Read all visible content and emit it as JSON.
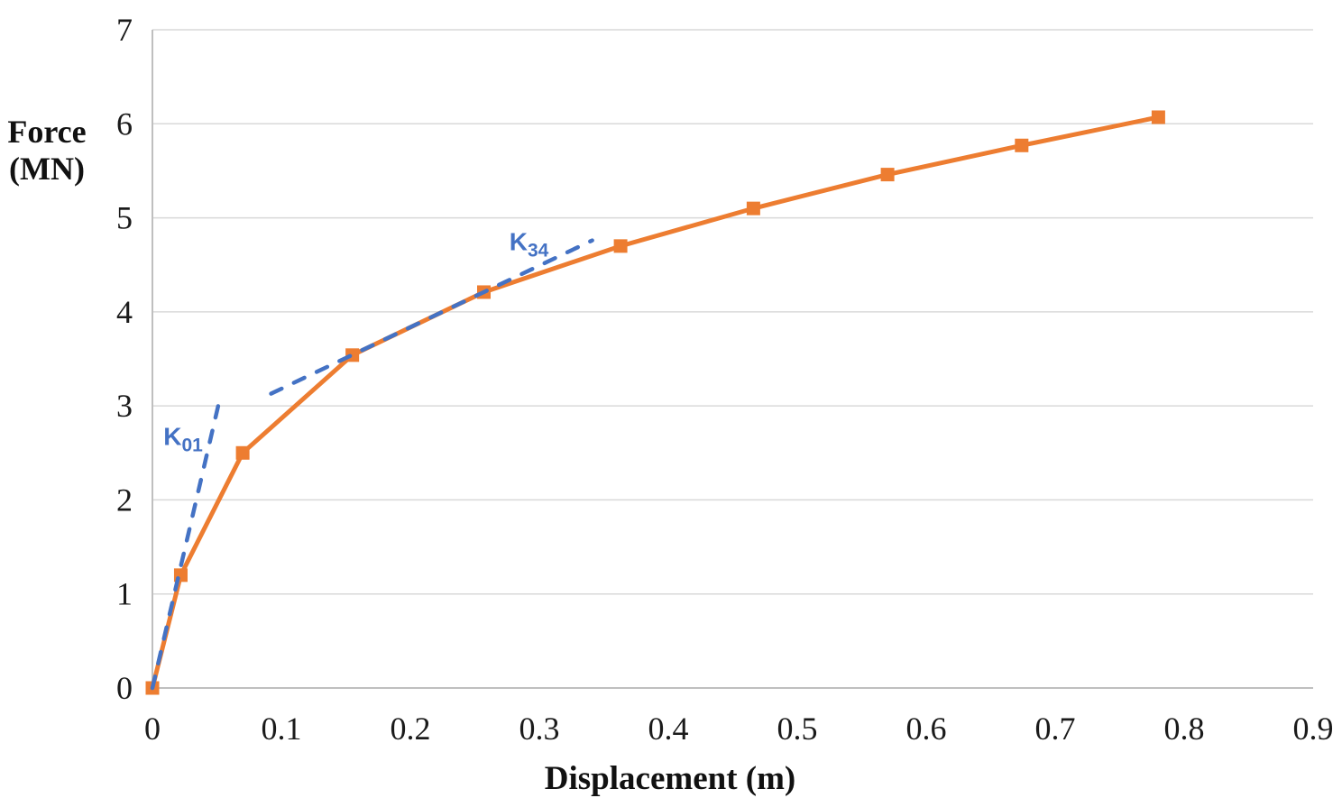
{
  "chart_data": {
    "type": "line",
    "title": "",
    "xlabel": "Displacement (m)",
    "ylabel_line1": "Force",
    "ylabel_line2": "(MN)",
    "xlim": [
      0,
      0.9
    ],
    "ylim": [
      0,
      7
    ],
    "xtick_labels": [
      "0",
      "0.1",
      "0.2",
      "0.3",
      "0.4",
      "0.5",
      "0.6",
      "0.7",
      "0.8",
      "0.9"
    ],
    "ytick_labels": [
      "0",
      "1",
      "2",
      "3",
      "4",
      "5",
      "6",
      "7"
    ],
    "grid": "horizontal-major-only",
    "legend": "none",
    "colors": {
      "curve": "#ED7D31",
      "stiffness_line": "#4472C4",
      "gridline": "#D9D9D9",
      "axis": "#BFBFBF",
      "tick_text": "#1A1A1A"
    },
    "series": [
      {
        "id": "force-displacement-curve",
        "name": "Force-displacement curve",
        "color": "#ED7D31",
        "line_style": "solid",
        "marker": "square",
        "points": [
          [
            0,
            0
          ],
          [
            0.022,
            1.2
          ],
          [
            0.07,
            2.5
          ],
          [
            0.155,
            3.54
          ],
          [
            0.257,
            4.21
          ],
          [
            0.363,
            4.7
          ],
          [
            0.466,
            5.1
          ],
          [
            0.57,
            5.46
          ],
          [
            0.674,
            5.77
          ],
          [
            0.78,
            6.07
          ]
        ]
      },
      {
        "id": "k01-stiffness-line",
        "name": "K01 initial stiffness dashed line",
        "color": "#4472C4",
        "line_style": "dashed",
        "marker": "none",
        "points": [
          [
            0,
            0
          ],
          [
            0.051,
            3.0
          ]
        ]
      },
      {
        "id": "k34-stiffness-line",
        "name": "K34 stiffness dashed line",
        "color": "#4472C4",
        "line_style": "dashed",
        "marker": "none",
        "points": [
          [
            0.092,
            3.13
          ],
          [
            0.341,
            4.76
          ]
        ]
      }
    ],
    "annotations": [
      {
        "name": "k01-label",
        "main": "K",
        "sub": "01",
        "x": 0.0238,
        "y": 2.68,
        "color": "#4472C4"
      },
      {
        "name": "k34-label",
        "main": "K",
        "sub": "34",
        "x": 0.292,
        "y": 4.75,
        "color": "#4472C4"
      }
    ]
  }
}
